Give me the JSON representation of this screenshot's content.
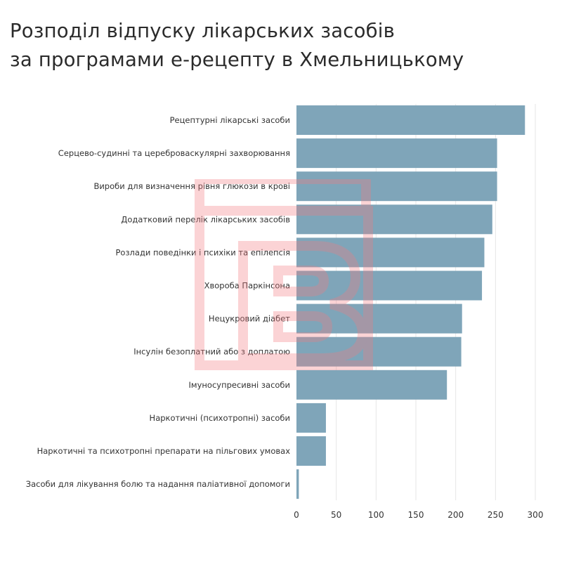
{
  "title_lines": [
    "Розподіл відпуску лікарських засобів",
    "за програмами е-рецепту в Хмельницькому"
  ],
  "colors": {
    "bar": "#7fa5b9",
    "grid": "#e6e6e6",
    "text": "#333333",
    "watermark": "#f47a80"
  },
  "chart_data": {
    "type": "bar",
    "orientation": "horizontal",
    "title": "Розподіл відпуску лікарських засобів за програмами е-рецепту в Хмельницькому",
    "categories": [
      "Рецептурні лікарські засоби",
      "Серцево-судинні та цереброваскулярні захворювання",
      "Вироби для визначення рівня глюкози в крові",
      "Додатковий перелік лікарських засобів",
      "Розлади поведінки і психіки та епілепсія",
      "Хвороба Паркінсона",
      "Нецукровий діабет",
      "Інсулін безоплатний або з доплатою",
      "Імуносупресивні засоби",
      "Наркотичні (психотропні) засоби",
      "Наркотичні та психотропні препарати на пільгових умовах",
      "Засоби для лікування болю та надання паліативної допомоги"
    ],
    "values": [
      287,
      252,
      252,
      246,
      236,
      233,
      208,
      207,
      189,
      37,
      37,
      3
    ],
    "xlim": [
      0,
      300
    ],
    "xticks": [
      0,
      50,
      100,
      150,
      200,
      250,
      300
    ],
    "grid": true,
    "xlabel": "",
    "ylabel": ""
  }
}
